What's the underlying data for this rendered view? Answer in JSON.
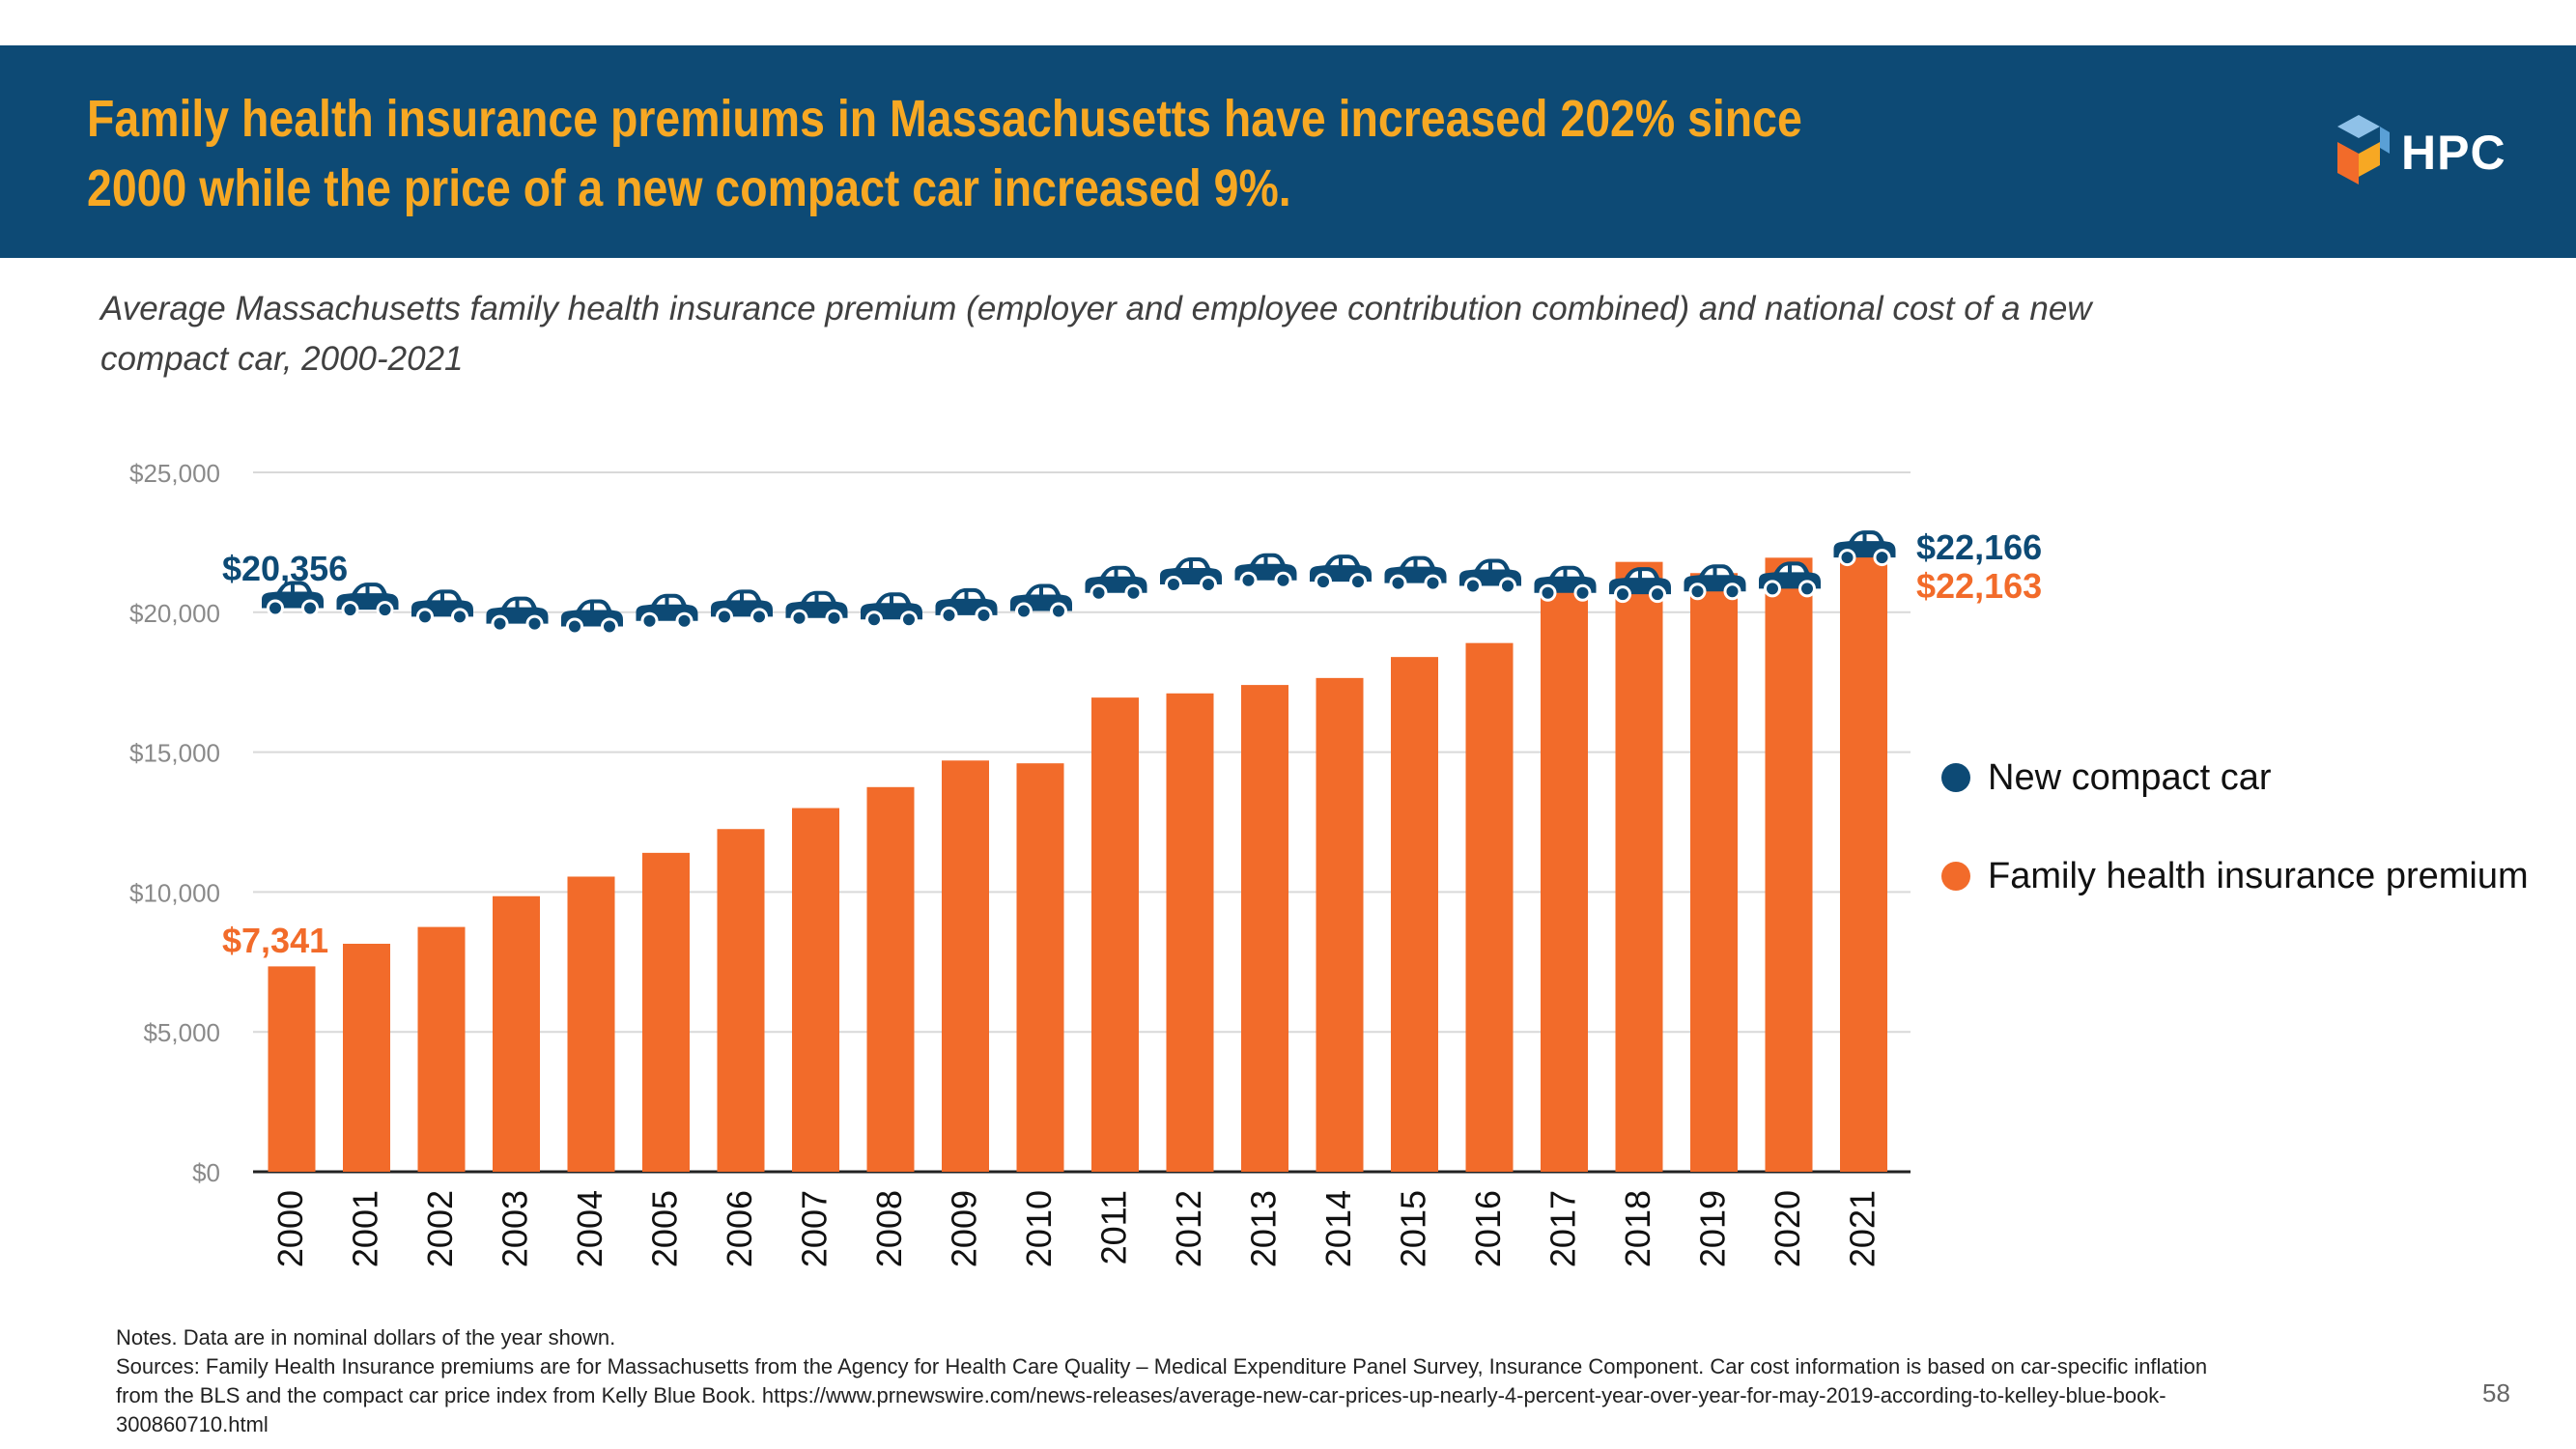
{
  "header": {
    "headline_line1": "Family health insurance premiums in Massachusetts have increased 202% since",
    "headline_line2": "2000 while the price of a new compact car increased 9%.",
    "logo_text": "HPC",
    "background_color": "#0d4a75",
    "headline_color": "#f7a823"
  },
  "subtitle": {
    "line1": "Average Massachusetts family health insurance premium (employer and employee contribution combined) and national cost of a new",
    "line2": "compact car, 2000-2021"
  },
  "chart_data": {
    "type": "bar",
    "categories": [
      "2000",
      "2001",
      "2002",
      "2003",
      "2004",
      "2005",
      "2006",
      "2007",
      "2008",
      "2009",
      "2010",
      "2011",
      "2012",
      "2013",
      "2014",
      "2015",
      "2016",
      "2017",
      "2018",
      "2019",
      "2020",
      "2021"
    ],
    "series": [
      {
        "name": "Family health insurance premium",
        "kind": "bar",
        "color": "#f26b2a",
        "values": [
          7341,
          8150,
          8750,
          9850,
          10550,
          11400,
          12250,
          13000,
          13750,
          14700,
          14600,
          16950,
          17100,
          17400,
          17650,
          18400,
          18900,
          21000,
          21800,
          21400,
          21950,
          22163
        ]
      },
      {
        "name": "New compact car",
        "kind": "car-icon",
        "color": "#0d4a75",
        "values": [
          20356,
          20300,
          20050,
          19800,
          19700,
          19900,
          20050,
          20000,
          19950,
          20100,
          20250,
          20900,
          21200,
          21350,
          21300,
          21250,
          21150,
          20900,
          20850,
          20950,
          21050,
          22166
        ]
      }
    ],
    "y_ticks": [
      "$0",
      "$5,000",
      "$10,000",
      "$15,000",
      "$20,000",
      "$25,000"
    ],
    "ylim": [
      0,
      25000
    ],
    "grid": true,
    "legend_position": "right",
    "annotations": {
      "premium_start": "$7,341",
      "car_start": "$20,356",
      "car_end": "$22,166",
      "premium_end": "$22,163"
    }
  },
  "legend": {
    "car_label": "New compact car",
    "premium_label": "Family health insurance premium",
    "car_color": "#0d4a75",
    "premium_color": "#f26b2a"
  },
  "notes": {
    "line1": "Notes. Data are in nominal dollars of the year shown.",
    "line2": "Sources: Family Health Insurance premiums are for Massachusetts from the Agency for Health Care Quality – Medical Expenditure Panel Survey, Insurance Component. Car cost information is based on car-specific inflation",
    "line3": "from the BLS and the compact car price index from Kelly Blue Book. https://www.prnewswire.com/news-releases/average-new-car-prices-up-nearly-4-percent-year-over-year-for-may-2019-according-to-kelley-blue-book-",
    "line4": "300860710.html"
  },
  "page_number": "58"
}
